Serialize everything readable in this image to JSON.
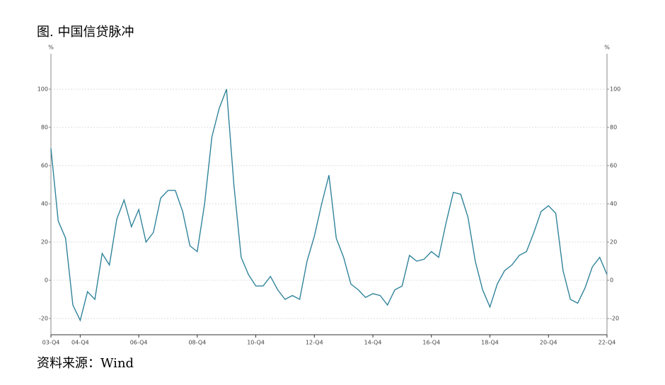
{
  "chart_data": {
    "type": "line",
    "title": "图. 中国信贷脉冲",
    "source": "资料来源：Wind",
    "y_unit": "%",
    "y2_unit": "%",
    "categories": [
      "03-Q4",
      null,
      null,
      null,
      "04-Q4",
      null,
      null,
      null,
      null,
      null,
      null,
      null,
      "06-Q4",
      null,
      null,
      null,
      null,
      null,
      null,
      null,
      "08-Q4",
      null,
      null,
      null,
      null,
      null,
      null,
      null,
      "10-Q4",
      null,
      null,
      null,
      null,
      null,
      null,
      null,
      "12-Q4",
      null,
      null,
      null,
      null,
      null,
      null,
      null,
      "14-Q4",
      null,
      null,
      null,
      null,
      null,
      null,
      null,
      "16-Q4",
      null,
      null,
      null,
      null,
      null,
      null,
      null,
      "18-Q4",
      null,
      null,
      null,
      null,
      null,
      null,
      null,
      "20-Q4",
      null,
      null,
      null,
      null,
      null,
      null,
      null,
      "22-Q4"
    ],
    "series": [
      {
        "color": "#31849b",
        "values": [
          69,
          31,
          22,
          -13,
          -21,
          -6,
          -10,
          14,
          8,
          32,
          42,
          28,
          37,
          20,
          25,
          43,
          47,
          47,
          36,
          18,
          15,
          40,
          75,
          90,
          100,
          50,
          12,
          3,
          -3,
          -3,
          2,
          -5,
          -10,
          -8,
          -10,
          10,
          23,
          40,
          55,
          22,
          12,
          -2,
          -5,
          -9,
          -7,
          -8,
          -13,
          -5,
          -3,
          13,
          10,
          11,
          15,
          12,
          30,
          46,
          45,
          33,
          10,
          -5,
          -14,
          -2,
          5,
          8,
          13,
          15,
          25,
          36,
          39,
          35,
          5,
          -10,
          -12,
          -4,
          7,
          12,
          3
        ]
      }
    ],
    "ylim": [
      -28.5,
      118.5
    ],
    "yticks": [
      -20,
      0,
      20,
      40,
      60,
      80,
      100
    ],
    "y2lim": [
      -28.5,
      118.5
    ],
    "y2ticks": [
      -20,
      0,
      20,
      40,
      60,
      80,
      100
    ],
    "grid": true
  }
}
